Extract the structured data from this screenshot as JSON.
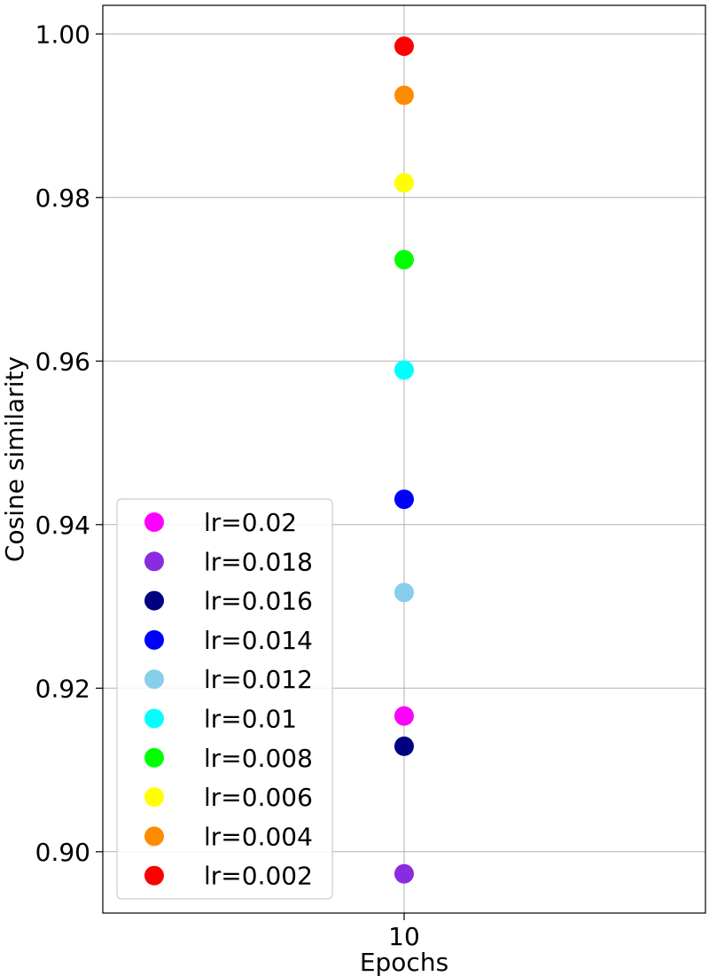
{
  "chart_data": {
    "type": "scatter",
    "title": "",
    "xlabel": "Epochs",
    "ylabel": "Cosine similarity",
    "x_ticks": [
      "10"
    ],
    "y_ticks": [
      "0.90",
      "0.92",
      "0.94",
      "0.96",
      "0.98",
      "1.00"
    ],
    "ylim": [
      0.8925,
      1.0035
    ],
    "grid": true,
    "legend_position": "lower-left",
    "series": [
      {
        "name": "lr=0.02",
        "color": "#ff00ff",
        "x": [
          "10"
        ],
        "y": [
          0.9166
        ]
      },
      {
        "name": "lr=0.018",
        "color": "#8a2be2",
        "x": [
          "10"
        ],
        "y": [
          0.8973
        ]
      },
      {
        "name": "lr=0.016",
        "color": "#000080",
        "x": [
          "10"
        ],
        "y": [
          0.9129
        ]
      },
      {
        "name": "lr=0.014",
        "color": "#0000ff",
        "x": [
          "10"
        ],
        "y": [
          0.9431
        ]
      },
      {
        "name": "lr=0.012",
        "color": "#87ceeb",
        "x": [
          "10"
        ],
        "y": [
          0.9317
        ]
      },
      {
        "name": "lr=0.01",
        "color": "#00ffff",
        "x": [
          "10"
        ],
        "y": [
          0.9589
        ]
      },
      {
        "name": "lr=0.008",
        "color": "#00ff00",
        "x": [
          "10"
        ],
        "y": [
          0.9724
        ]
      },
      {
        "name": "lr=0.006",
        "color": "#ffff00",
        "x": [
          "10"
        ],
        "y": [
          0.9818
        ]
      },
      {
        "name": "lr=0.004",
        "color": "#ff8c00",
        "x": [
          "10"
        ],
        "y": [
          0.9925
        ]
      },
      {
        "name": "lr=0.002",
        "color": "#ff0000",
        "x": [
          "10"
        ],
        "y": [
          0.9985
        ]
      }
    ]
  }
}
